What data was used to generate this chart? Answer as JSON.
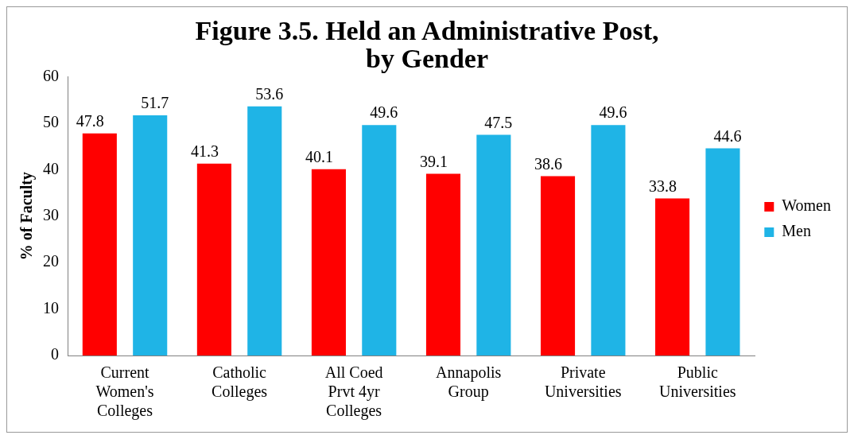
{
  "chart_data": {
    "type": "bar",
    "title": "Figure 3.5. Held an Administrative Post, by Gender",
    "ylabel": "% of Faculty",
    "categories": [
      "Current Women's Colleges",
      "Catholic Colleges",
      "All Coed Prvt 4yr Colleges",
      "Annapolis Group",
      "Private Universities",
      "Public Universities"
    ],
    "series": [
      {
        "name": "Women",
        "color": "#ff0000",
        "values": [
          47.8,
          41.3,
          40.1,
          39.1,
          38.6,
          33.8
        ]
      },
      {
        "name": "Men",
        "color": "#1fb4e6",
        "values": [
          51.7,
          53.6,
          49.6,
          47.5,
          49.6,
          44.6
        ]
      }
    ],
    "ylim": [
      0,
      60
    ],
    "yticks": [
      0,
      10,
      20,
      30,
      40,
      50,
      60
    ],
    "grid": false,
    "legend": "right",
    "data_labels": true
  }
}
